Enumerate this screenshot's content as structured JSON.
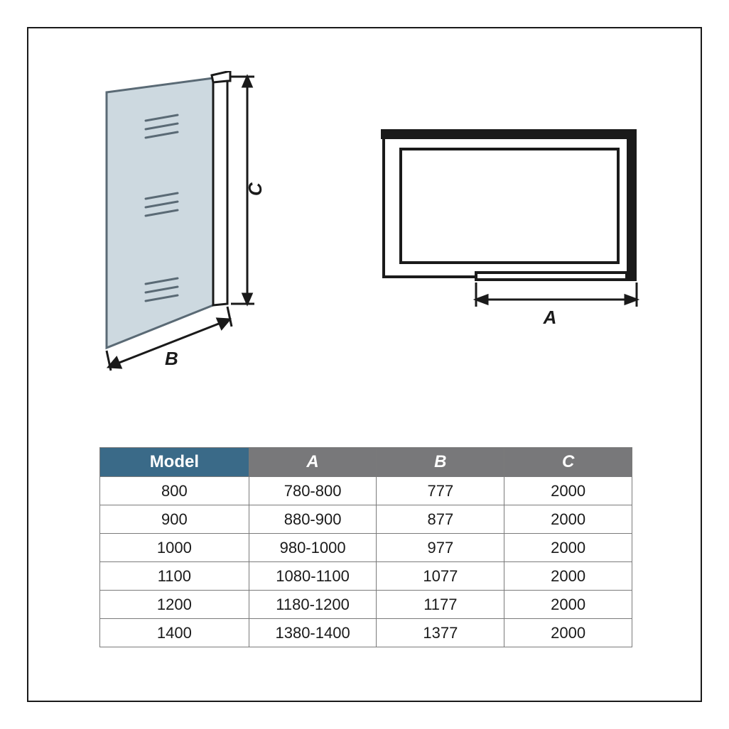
{
  "colors": {
    "stroke": "#1a1a1a",
    "glass_fill": "#cdd9e0",
    "glass_stroke": "#5a6a75",
    "header_model_bg": "#3a6a88",
    "header_dim_bg": "#78787a",
    "header_text": "#ffffff",
    "cell_border": "#7a7a7a",
    "cell_text": "#1a1a1a",
    "background": "#ffffff"
  },
  "labels": {
    "A": "A",
    "B": "B",
    "C": "C"
  },
  "table": {
    "headers": {
      "model": "Model",
      "a": "A",
      "b": "B",
      "c": "C"
    },
    "rows": [
      {
        "model": "800",
        "a": "780-800",
        "b": "777",
        "c": "2000"
      },
      {
        "model": "900",
        "a": "880-900",
        "b": "877",
        "c": "2000"
      },
      {
        "model": "1000",
        "a": "980-1000",
        "b": "977",
        "c": "2000"
      },
      {
        "model": "1100",
        "a": "1080-1100",
        "b": "1077",
        "c": "2000"
      },
      {
        "model": "1200",
        "a": "1180-1200",
        "b": "1177",
        "c": "2000"
      },
      {
        "model": "1400",
        "a": "1380-1400",
        "b": "1377",
        "c": "2000"
      }
    ],
    "col_widths": [
      "28%",
      "24%",
      "24%",
      "24%"
    ]
  }
}
